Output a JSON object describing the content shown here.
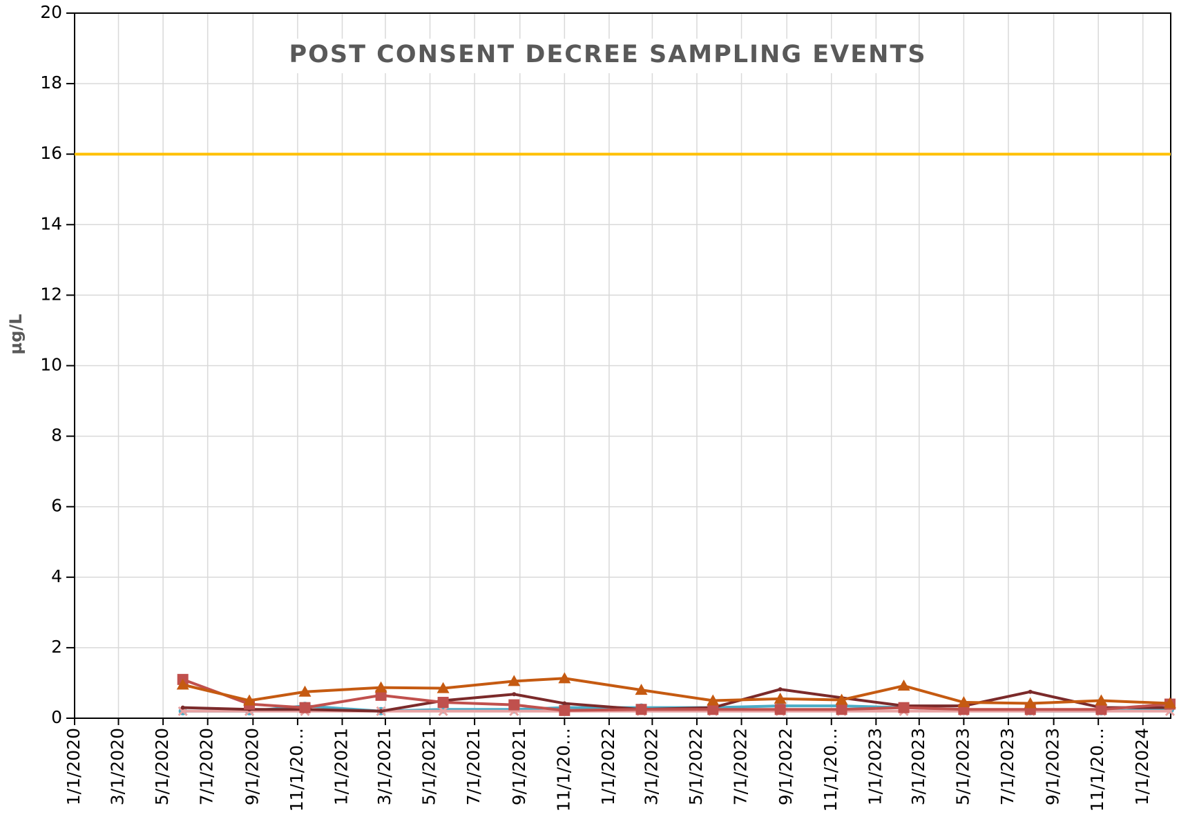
{
  "chart_data": {
    "type": "line",
    "title": "POST CONSENT DECREE SAMPLING EVENTS",
    "y_label": "µg/L",
    "x": [
      "2020-05-28",
      "2020-08-27",
      "2020-11-11",
      "2021-02-23",
      "2021-05-19",
      "2021-08-24",
      "2021-11-01",
      "2022-02-14",
      "2022-05-23",
      "2022-08-23",
      "2022-11-15",
      "2023-02-08",
      "2023-05-01",
      "2023-07-31",
      "2023-11-05",
      "2024-02-07"
    ],
    "series": [
      {
        "color": "#4bacc6",
        "marker": "circle",
        "values": [
          0.2,
          0.2,
          0.35,
          0.2,
          0.25,
          0.25,
          0.3,
          0.3,
          0.3,
          0.35,
          0.35,
          0.3,
          0.25,
          0.2,
          0.2,
          0.25
        ]
      },
      {
        "color": "#e8a3a3",
        "marker": "x",
        "values": [
          0.2,
          0.2,
          0.2,
          0.2,
          0.2,
          0.2,
          0.2,
          0.2,
          0.2,
          0.2,
          0.2,
          0.2,
          0.2,
          0.2,
          0.2,
          0.2
        ]
      },
      {
        "color": "#7b2a2a",
        "marker": "dot",
        "values": [
          0.3,
          0.25,
          0.25,
          0.2,
          0.5,
          0.68,
          0.42,
          0.25,
          0.3,
          0.82,
          0.58,
          0.35,
          0.35,
          0.75,
          0.3,
          0.3
        ]
      },
      {
        "color": "#c0504d",
        "marker": "square",
        "values": [
          1.1,
          0.4,
          0.3,
          0.65,
          0.45,
          0.38,
          0.22,
          0.25,
          0.25,
          0.25,
          0.25,
          0.3,
          0.25,
          0.25,
          0.25,
          0.4
        ]
      },
      {
        "color": "#c55a11",
        "marker": "triangle",
        "values": [
          0.95,
          0.5,
          0.75,
          0.87,
          0.85,
          1.05,
          1.13,
          0.8,
          0.5,
          0.55,
          0.52,
          0.92,
          0.45,
          0.42,
          0.5,
          0.42
        ]
      }
    ],
    "reference_lines": [
      {
        "value": 16,
        "color": "#ffc000"
      }
    ],
    "xlim": [
      "2020-01-01",
      "2024-02-08"
    ],
    "xticks": [
      "1/1/2020",
      "3/1/2020",
      "5/1/2020",
      "7/1/2020",
      "9/1/2020",
      {
        "value": "2020-11-01",
        "label": "11/1/20…"
      },
      "1/1/2021",
      "3/1/2021",
      "5/1/2021",
      "7/1/2021",
      "9/1/2021",
      {
        "value": "2021-11-01",
        "label": "11/1/20…"
      },
      "1/1/2022",
      "3/1/2022",
      "5/1/2022",
      "7/1/2022",
      "9/1/2022",
      {
        "value": "2022-11-01",
        "label": "11/1/20…"
      },
      "1/1/2023",
      "3/1/2023",
      "5/1/2023",
      "7/1/2023",
      "9/1/2023",
      {
        "value": "2023-11-01",
        "label": "11/1/20…"
      },
      "1/1/2024"
    ],
    "ylim": [
      0,
      20
    ],
    "yticks": [
      0,
      2,
      4,
      6,
      8,
      10,
      12,
      14,
      16,
      18,
      20
    ],
    "grid": true
  }
}
